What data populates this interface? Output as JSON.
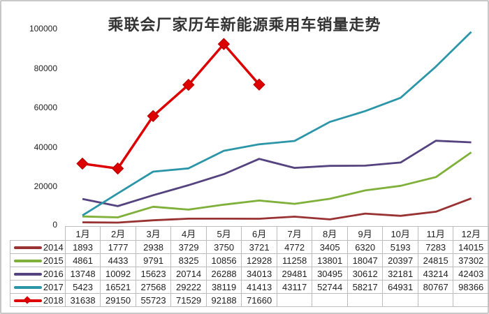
{
  "chart_data": {
    "type": "line",
    "title": "乘联会厂家历年新能源乘用车销量走势",
    "xlabel": "",
    "ylabel": "",
    "ylim": [
      0,
      100000
    ],
    "yticks": [
      0,
      20000,
      40000,
      60000,
      80000,
      100000
    ],
    "ytick_labels": [
      "0",
      "20000",
      "40000",
      "60000",
      "80000",
      "100000"
    ],
    "grid": false,
    "legend_position": "data-table",
    "categories": [
      "1月",
      "2月",
      "3月",
      "4月",
      "5月",
      "6月",
      "7月",
      "8月",
      "9月",
      "10月",
      "11月",
      "12月"
    ],
    "series": [
      {
        "name": "2014",
        "color": "#993333",
        "marker": "none",
        "values": [
          1893,
          1777,
          2938,
          3729,
          3750,
          3721,
          4772,
          3405,
          6320,
          5193,
          7283,
          14015
        ]
      },
      {
        "name": "2015",
        "color": "#7fb03a",
        "marker": "none",
        "values": [
          4861,
          4433,
          9791,
          8325,
          10856,
          12928,
          11258,
          13801,
          18047,
          20397,
          24815,
          37302
        ]
      },
      {
        "name": "2016",
        "color": "#54437e",
        "marker": "none",
        "values": [
          13748,
          10092,
          15623,
          20714,
          26288,
          34013,
          29481,
          30495,
          30612,
          32181,
          43214,
          42403
        ]
      },
      {
        "name": "2017",
        "color": "#2b96a8",
        "marker": "none",
        "values": [
          5423,
          16521,
          27568,
          29222,
          38119,
          41413,
          43117,
          52744,
          58217,
          64931,
          80767,
          98366
        ]
      },
      {
        "name": "2018",
        "color": "#dd0000",
        "marker": "diamond",
        "values": [
          31638,
          29150,
          55723,
          71529,
          92188,
          71660,
          null,
          null,
          null,
          null,
          null,
          null
        ]
      }
    ]
  },
  "table": {
    "row_labels": [
      "2014",
      "2015",
      "2016",
      "2017",
      "2018"
    ],
    "rows": [
      [
        "1893",
        "1777",
        "2938",
        "3729",
        "3750",
        "3721",
        "4772",
        "3405",
        "6320",
        "5193",
        "7283",
        "14015"
      ],
      [
        "4861",
        "4433",
        "9791",
        "8325",
        "10856",
        "12928",
        "11258",
        "13801",
        "18047",
        "20397",
        "24815",
        "37302"
      ],
      [
        "13748",
        "10092",
        "15623",
        "20714",
        "26288",
        "34013",
        "29481",
        "30495",
        "30612",
        "32181",
        "43214",
        "42403"
      ],
      [
        "5423",
        "16521",
        "27568",
        "29222",
        "38119",
        "41413",
        "43117",
        "52744",
        "58217",
        "64931",
        "80767",
        "98366"
      ],
      [
        "31638",
        "29150",
        "55723",
        "71529",
        "92188",
        "71660",
        "",
        "",
        "",
        "",
        "",
        ""
      ]
    ]
  }
}
